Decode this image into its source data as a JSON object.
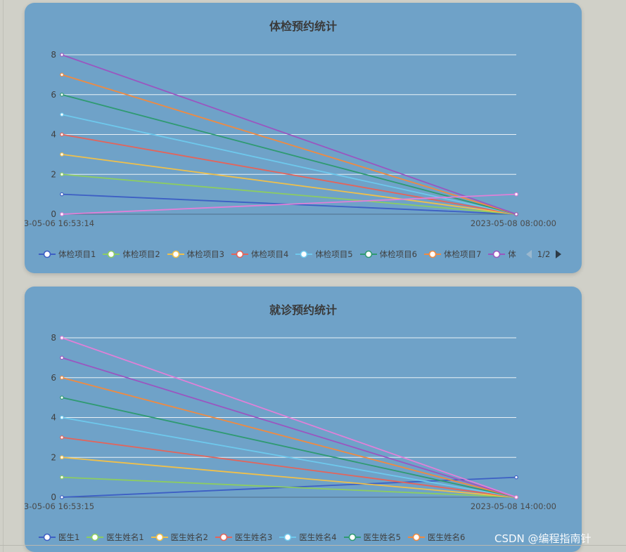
{
  "watermark": "CSDN @编程指南针",
  "chart_data": [
    {
      "type": "line",
      "title": "体检预约统计",
      "x": [
        "3-05-06 16:53:14",
        "2023-05-08 08:00:00"
      ],
      "ylim": [
        0,
        8
      ],
      "yticks": [
        0,
        2,
        4,
        6,
        8
      ],
      "grid": true,
      "legend_position": "bottom",
      "pager": "1/2",
      "series": [
        {
          "name": "体检项目1",
          "color": "#3d5fc4",
          "values": [
            1,
            0
          ]
        },
        {
          "name": "体检项目2",
          "color": "#8ccc62",
          "values": [
            2,
            0
          ]
        },
        {
          "name": "体检项目3",
          "color": "#f0c04a",
          "values": [
            3,
            0
          ]
        },
        {
          "name": "体检项目4",
          "color": "#e4645a",
          "values": [
            4,
            0
          ]
        },
        {
          "name": "体检项目5",
          "color": "#6ec8ec",
          "values": [
            5,
            0
          ]
        },
        {
          "name": "体检项目6",
          "color": "#2f9a72",
          "values": [
            6,
            0
          ]
        },
        {
          "name": "体检项目7",
          "color": "#f08a40",
          "values": [
            7,
            0
          ]
        },
        {
          "name": "体",
          "color": "#9a56c0",
          "values": [
            8,
            0
          ]
        },
        {
          "name": "",
          "color": "#e080d8",
          "values": [
            0,
            1
          ],
          "legend": false
        }
      ]
    },
    {
      "type": "line",
      "title": "就诊预约统计",
      "x": [
        "3-05-06 16:53:15",
        "2023-05-08 14:00:00"
      ],
      "ylim": [
        0,
        8
      ],
      "yticks": [
        0,
        2,
        4,
        6,
        8
      ],
      "grid": true,
      "legend_position": "bottom",
      "series": [
        {
          "name": "医生1",
          "color": "#3d5fc4",
          "values": [
            0,
            1
          ]
        },
        {
          "name": "医生姓名1",
          "color": "#8ccc62",
          "values": [
            1,
            0
          ]
        },
        {
          "name": "医生姓名2",
          "color": "#f0c04a",
          "values": [
            2,
            0
          ]
        },
        {
          "name": "医生姓名3",
          "color": "#e4645a",
          "values": [
            3,
            0
          ]
        },
        {
          "name": "医生姓名4",
          "color": "#6ec8ec",
          "values": [
            4,
            0
          ]
        },
        {
          "name": "医生姓名5",
          "color": "#2f9a72",
          "values": [
            5,
            0
          ]
        },
        {
          "name": "医生姓名6",
          "color": "#f08a40",
          "values": [
            6,
            0
          ]
        },
        {
          "name": "",
          "color": "#9a56c0",
          "values": [
            7,
            0
          ]
        },
        {
          "name": "",
          "color": "#e080d8",
          "values": [
            8,
            0
          ],
          "legend": false
        }
      ]
    }
  ]
}
